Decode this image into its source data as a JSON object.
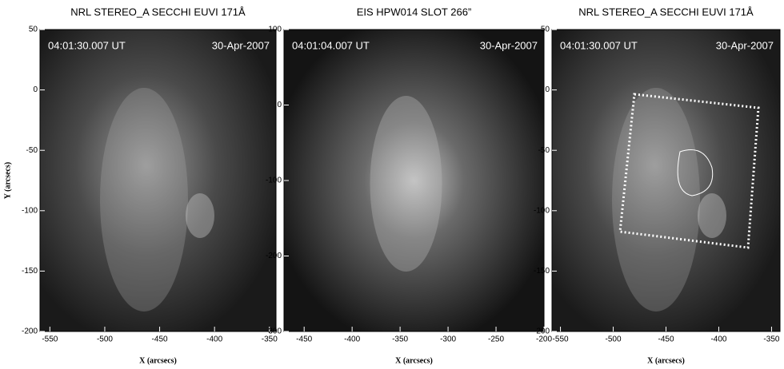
{
  "chart_data": [
    {
      "type": "image",
      "title": "NRL STEREO_A  SECCHI  EUVI 171Å",
      "annotations": [
        "04:01:30.007 UT",
        "30-Apr-2007"
      ],
      "xlabel": "X (arcsecs)",
      "ylabel": "Y (arcsecs)",
      "xlim": [
        -559,
        -344
      ],
      "ylim": [
        -200,
        50
      ],
      "xticks": [
        -550,
        -500,
        -450,
        -400,
        -350
      ],
      "yticks": [
        -200,
        -150,
        -100,
        -50,
        0,
        50
      ]
    },
    {
      "type": "image",
      "title": "EIS HPW014  SLOT 266”",
      "annotations": [
        "04:01:04.007 UT",
        "30-Apr-2007"
      ],
      "xlabel": "X (arcsecs)",
      "xlim": [
        -471,
        -200
      ],
      "ylim": [
        -300,
        100
      ],
      "xticks": [
        -450,
        -400,
        -350,
        -300,
        -250,
        -200
      ],
      "yticks": [
        -300,
        -200,
        -100,
        0,
        100
      ]
    },
    {
      "type": "image",
      "title": "NRL STEREO_A  SECCHI  EUVI 171Å",
      "annotations": [
        "04:01:30.007 UT",
        "30-Apr-2007"
      ],
      "xlabel": "X (arcsecs)",
      "xlim": [
        -558,
        -342
      ],
      "ylim": [
        -200,
        50
      ],
      "xticks": [
        -550,
        -500,
        -450,
        -400,
        -350
      ],
      "yticks": [
        -200,
        -150,
        -100,
        -50,
        0,
        50
      ]
    }
  ]
}
